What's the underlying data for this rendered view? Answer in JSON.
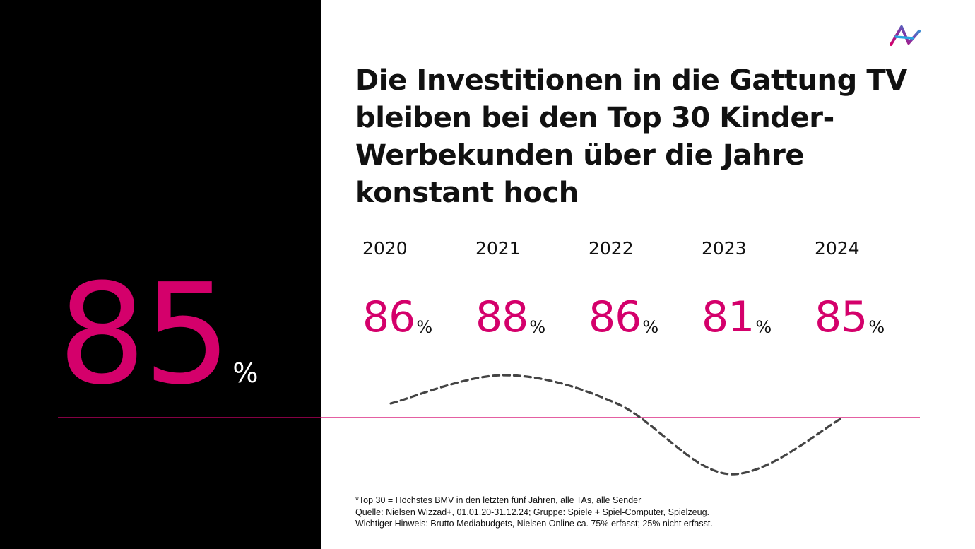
{
  "headline": "Die Investitionen in die Gattung TV bleiben bei den Top 30 Kinder-Werbekunden über die Jahre konstant hoch",
  "summary": {
    "value": "85",
    "unit": "%"
  },
  "years": [
    {
      "year": "2020",
      "value": "86",
      "unit": "%"
    },
    {
      "year": "2021",
      "value": "88",
      "unit": "%"
    },
    {
      "year": "2022",
      "value": "86",
      "unit": "%"
    },
    {
      "year": "2023",
      "value": "81",
      "unit": "%"
    },
    {
      "year": "2024",
      "value": "85",
      "unit": "%"
    }
  ],
  "chart_data": {
    "type": "line",
    "categories": [
      "2020",
      "2021",
      "2022",
      "2023",
      "2024"
    ],
    "series": [
      {
        "values": [
          86,
          88,
          86,
          81,
          85
        ]
      }
    ],
    "reference_line": 85,
    "line_style": "dashed",
    "smooth": true,
    "colors": {
      "accent": "#d4006b",
      "line": "#444444",
      "reference": "#d4006b"
    }
  },
  "footnote": {
    "line1": "*Top 30 = Höchstes BMV in den letzten fünf Jahren, alle TAs, alle Sender",
    "line2": "Quelle: Nielsen Wizzad+, 01.01.20-31.12.24; Gruppe: Spiele + Spiel-Computer, Spielzeug.",
    "line3": "Wichtiger Hinweis: Brutto Mediabudgets, Nielsen Online ca. 75% erfasst; 25% nicht erfasst."
  },
  "colors": {
    "accent": "#d4006b",
    "dark_panel": "#000000"
  },
  "logo_icon": "brand-logo-icon"
}
